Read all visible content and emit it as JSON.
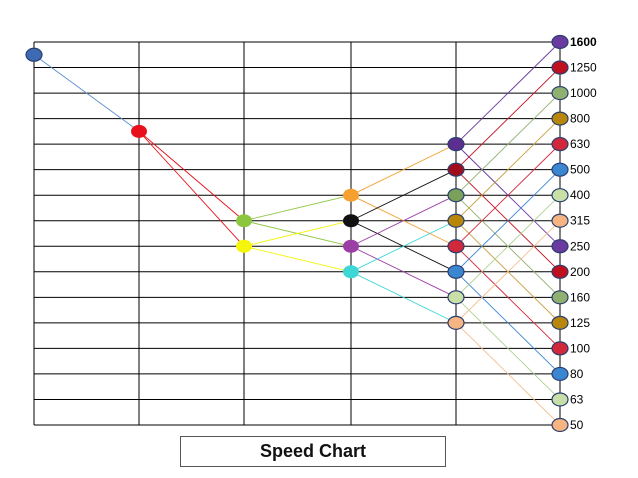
{
  "chart_data": {
    "type": "line",
    "title": "Speed Chart",
    "speeds": [
      "50",
      "63",
      "80",
      "100",
      "125",
      "160",
      "200",
      "250",
      "315",
      "400",
      "500",
      "630",
      "800",
      "1000",
      "1250",
      "1600"
    ],
    "grid": true,
    "shafts": 6,
    "nodes": [
      {
        "shaft": 0,
        "level": 14.5,
        "color": "#3c6bb3"
      },
      {
        "shaft": 1,
        "level": 11.5,
        "color": "#e8101a"
      },
      {
        "shaft": 2,
        "level": 8,
        "color": "#8cc63f"
      },
      {
        "shaft": 2,
        "level": 7,
        "color": "#f5f50a"
      },
      {
        "shaft": 3,
        "level": 9,
        "color": "#f5a030"
      },
      {
        "shaft": 3,
        "level": 8,
        "color": "#111111"
      },
      {
        "shaft": 3,
        "level": 7,
        "color": "#9b3fa6"
      },
      {
        "shaft": 3,
        "level": 6,
        "color": "#3fd6d6"
      },
      {
        "shaft": 4,
        "level": 11,
        "color": "#5b2e90"
      },
      {
        "shaft": 4,
        "level": 10,
        "color": "#a00e1e"
      },
      {
        "shaft": 4,
        "level": 9,
        "color": "#7aa05a"
      },
      {
        "shaft": 4,
        "level": 8,
        "color": "#b8860b"
      },
      {
        "shaft": 4,
        "level": 7,
        "color": "#d2283c"
      },
      {
        "shaft": 4,
        "level": 6,
        "color": "#3a86d0"
      },
      {
        "shaft": 4,
        "level": 5,
        "color": "#c8e0a8"
      },
      {
        "shaft": 4,
        "level": 4,
        "color": "#f5b482"
      },
      {
        "shaft": 5,
        "level": 15,
        "color": "#6a3aa0"
      },
      {
        "shaft": 5,
        "level": 14,
        "color": "#c0101e"
      },
      {
        "shaft": 5,
        "level": 13,
        "color": "#8fb070"
      },
      {
        "shaft": 5,
        "level": 12,
        "color": "#b8860b"
      },
      {
        "shaft": 5,
        "level": 11,
        "color": "#d2283c"
      },
      {
        "shaft": 5,
        "level": 10,
        "color": "#3a86d0"
      },
      {
        "shaft": 5,
        "level": 9,
        "color": "#c8e0a8"
      },
      {
        "shaft": 5,
        "level": 8,
        "color": "#f5b482"
      },
      {
        "shaft": 5,
        "level": 7,
        "color": "#6a3aa0"
      },
      {
        "shaft": 5,
        "level": 6,
        "color": "#c0101e"
      },
      {
        "shaft": 5,
        "level": 5,
        "color": "#8fb070"
      },
      {
        "shaft": 5,
        "level": 4,
        "color": "#b8860b"
      },
      {
        "shaft": 5,
        "level": 3,
        "color": "#d2283c"
      },
      {
        "shaft": 5,
        "level": 2,
        "color": "#3a86d0"
      },
      {
        "shaft": 5,
        "level": 1,
        "color": "#c8e0a8"
      },
      {
        "shaft": 5,
        "level": 0,
        "color": "#f5b482"
      }
    ],
    "links": [
      {
        "from": [
          0,
          14.5
        ],
        "to": [
          1,
          11.5
        ],
        "color": "#5b8fd0"
      },
      {
        "from": [
          1,
          11.5
        ],
        "to": [
          2,
          8
        ],
        "color": "#e8101a"
      },
      {
        "from": [
          1,
          11.5
        ],
        "to": [
          2,
          7
        ],
        "color": "#e8101a"
      },
      {
        "from": [
          2,
          8
        ],
        "to": [
          3,
          9
        ],
        "color": "#8cc63f"
      },
      {
        "from": [
          2,
          8
        ],
        "to": [
          3,
          7
        ],
        "color": "#8cc63f"
      },
      {
        "from": [
          2,
          7
        ],
        "to": [
          3,
          8
        ],
        "color": "#f5f50a"
      },
      {
        "from": [
          2,
          7
        ],
        "to": [
          3,
          6
        ],
        "color": "#f5f50a"
      },
      {
        "from": [
          3,
          9
        ],
        "to": [
          4,
          11
        ],
        "color": "#f5a030"
      },
      {
        "from": [
          3,
          9
        ],
        "to": [
          4,
          7
        ],
        "color": "#f5a030"
      },
      {
        "from": [
          3,
          8
        ],
        "to": [
          4,
          10
        ],
        "color": "#111111"
      },
      {
        "from": [
          3,
          8
        ],
        "to": [
          4,
          6
        ],
        "color": "#111111"
      },
      {
        "from": [
          3,
          7
        ],
        "to": [
          4,
          9
        ],
        "color": "#9b3fa6"
      },
      {
        "from": [
          3,
          7
        ],
        "to": [
          4,
          5
        ],
        "color": "#9b3fa6"
      },
      {
        "from": [
          3,
          6
        ],
        "to": [
          4,
          8
        ],
        "color": "#3fd6d6"
      },
      {
        "from": [
          3,
          6
        ],
        "to": [
          4,
          4
        ],
        "color": "#3fd6d6"
      },
      {
        "from": [
          4,
          11
        ],
        "to": [
          5,
          15
        ],
        "color": "#6a3aa0"
      },
      {
        "from": [
          4,
          11
        ],
        "to": [
          5,
          7
        ],
        "color": "#6a3aa0"
      },
      {
        "from": [
          4,
          10
        ],
        "to": [
          5,
          14
        ],
        "color": "#c0101e"
      },
      {
        "from": [
          4,
          10
        ],
        "to": [
          5,
          6
        ],
        "color": "#c0101e"
      },
      {
        "from": [
          4,
          9
        ],
        "to": [
          5,
          13
        ],
        "color": "#8fb070"
      },
      {
        "from": [
          4,
          9
        ],
        "to": [
          5,
          5
        ],
        "color": "#8fb070"
      },
      {
        "from": [
          4,
          8
        ],
        "to": [
          5,
          12
        ],
        "color": "#c8a040"
      },
      {
        "from": [
          4,
          8
        ],
        "to": [
          5,
          4
        ],
        "color": "#c8a040"
      },
      {
        "from": [
          4,
          7
        ],
        "to": [
          5,
          11
        ],
        "color": "#d2283c"
      },
      {
        "from": [
          4,
          7
        ],
        "to": [
          5,
          3
        ],
        "color": "#d2283c"
      },
      {
        "from": [
          4,
          6
        ],
        "to": [
          5,
          10
        ],
        "color": "#3a86d0"
      },
      {
        "from": [
          4,
          6
        ],
        "to": [
          5,
          2
        ],
        "color": "#3a86d0"
      },
      {
        "from": [
          4,
          5
        ],
        "to": [
          5,
          9
        ],
        "color": "#b0d090"
      },
      {
        "from": [
          4,
          5
        ],
        "to": [
          5,
          1
        ],
        "color": "#b0d090"
      },
      {
        "from": [
          4,
          4
        ],
        "to": [
          5,
          8
        ],
        "color": "#f5c090"
      },
      {
        "from": [
          4,
          4
        ],
        "to": [
          5,
          0
        ],
        "color": "#f5c090"
      }
    ]
  }
}
